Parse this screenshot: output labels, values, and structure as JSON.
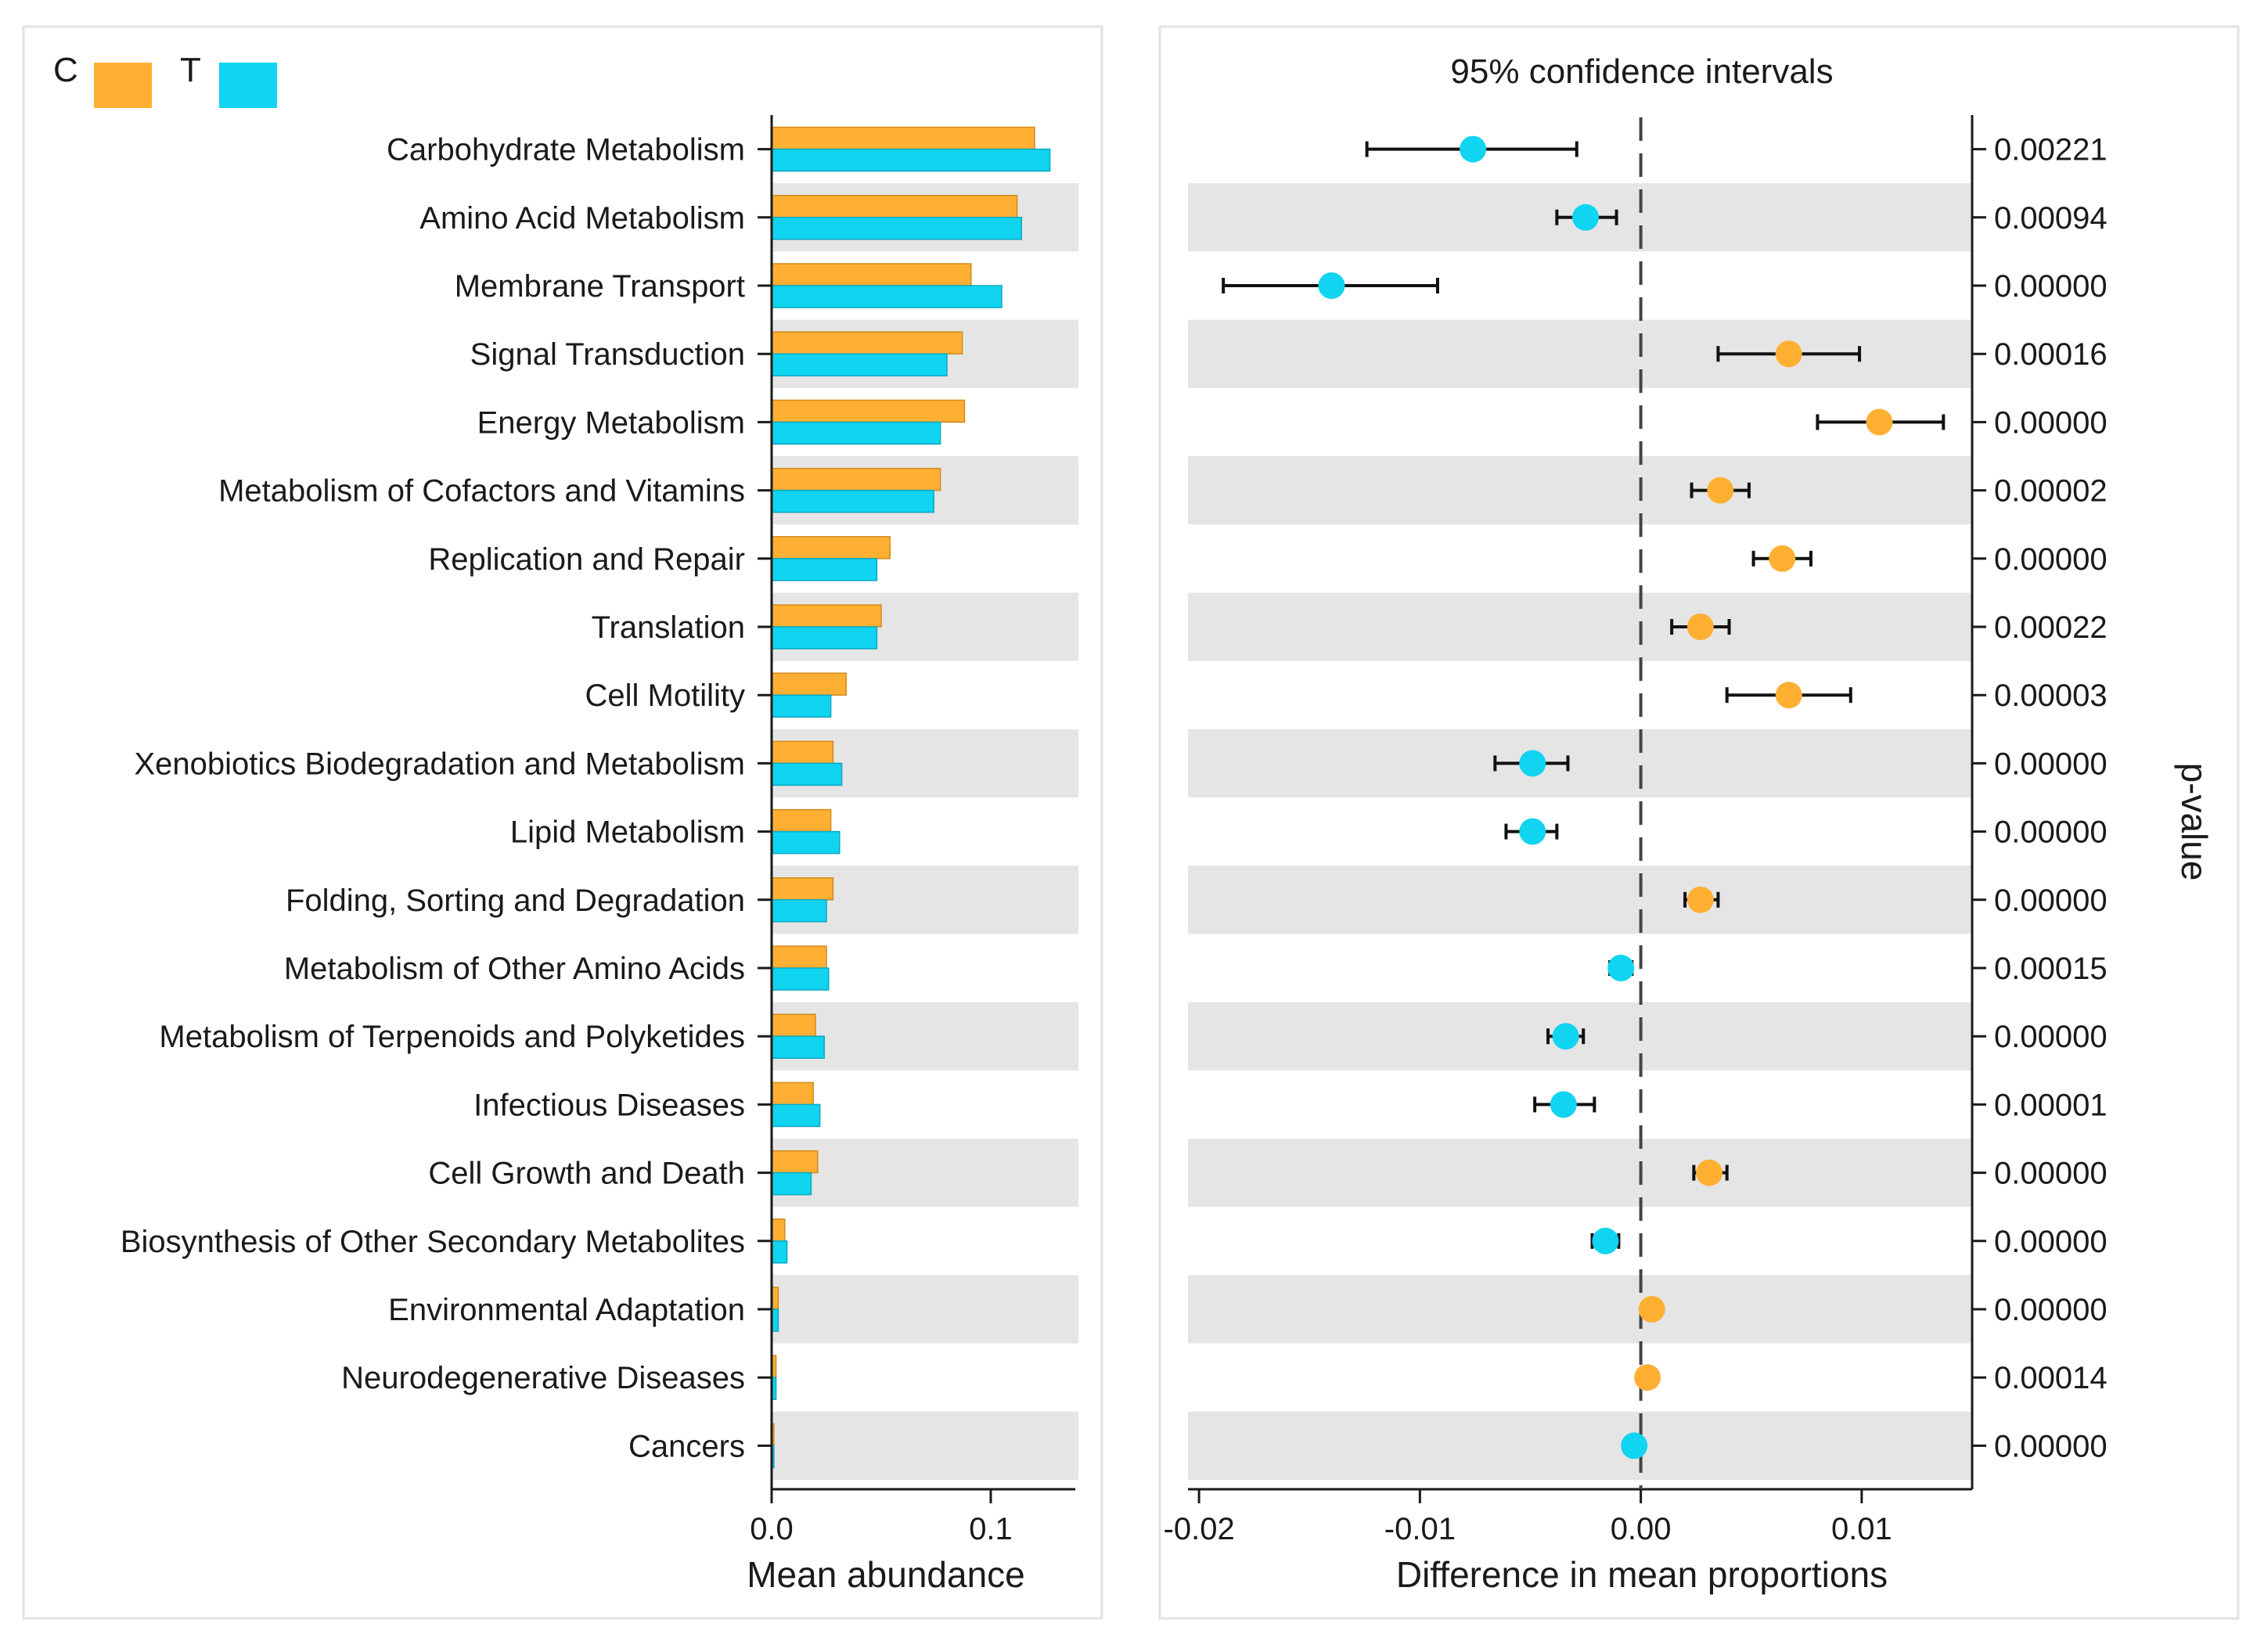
{
  "legend": {
    "c_label": "C",
    "t_label": "T"
  },
  "colors": {
    "c": "#FFB033",
    "t": "#10D4F0",
    "band": "#E5E5E5",
    "axis": "#1a1a1a"
  },
  "chart_data": [
    {
      "type": "bar",
      "orientation": "horizontal",
      "xlabel": "Mean abundance",
      "xlim": [
        0.0,
        0.14
      ],
      "xticks": [
        "0.0",
        "0.1"
      ],
      "categories": [
        "Carbohydrate Metabolism",
        "Amino Acid Metabolism",
        "Membrane Transport",
        "Signal Transduction",
        "Energy Metabolism",
        "Metabolism of Cofactors and Vitamins",
        "Replication and Repair",
        "Translation",
        "Cell Motility",
        "Xenobiotics Biodegradation and Metabolism",
        "Lipid Metabolism",
        "Folding, Sorting and Degradation",
        "Metabolism of Other Amino Acids",
        "Metabolism of Terpenoids and Polyketides",
        "Infectious Diseases",
        "Cell Growth and Death",
        "Biosynthesis of Other Secondary Metabolites",
        "Environmental Adaptation",
        "Neurodegenerative Diseases",
        "Cancers"
      ],
      "series": [
        {
          "name": "C",
          "values": [
            0.12,
            0.112,
            0.091,
            0.087,
            0.088,
            0.077,
            0.054,
            0.05,
            0.034,
            0.028,
            0.027,
            0.028,
            0.025,
            0.02,
            0.019,
            0.021,
            0.006,
            0.003,
            0.002,
            0.001
          ]
        },
        {
          "name": "T",
          "values": [
            0.127,
            0.114,
            0.105,
            0.08,
            0.077,
            0.074,
            0.048,
            0.048,
            0.027,
            0.032,
            0.031,
            0.025,
            0.026,
            0.024,
            0.022,
            0.018,
            0.007,
            0.003,
            0.002,
            0.001
          ]
        }
      ]
    },
    {
      "type": "scatter",
      "subtype": "error-bar",
      "title": "95% confidence intervals",
      "xlabel": "Difference in mean proportions",
      "ylabel_right": "p-value",
      "xlim": [
        -0.0205,
        0.015
      ],
      "xticks": [
        "-0.02",
        "-0.01",
        "0.00",
        "0.01"
      ],
      "points": [
        {
          "diff": -0.0076,
          "lo": -0.0124,
          "hi": -0.0029,
          "group": "T",
          "p": "0.00221"
        },
        {
          "diff": -0.0025,
          "lo": -0.0038,
          "hi": -0.0011,
          "group": "T",
          "p": "0.00094"
        },
        {
          "diff": -0.014,
          "lo": -0.0189,
          "hi": -0.0092,
          "group": "T",
          "p": "0.00000"
        },
        {
          "diff": 0.0067,
          "lo": 0.0035,
          "hi": 0.0099,
          "group": "C",
          "p": "0.00016"
        },
        {
          "diff": 0.0108,
          "lo": 0.008,
          "hi": 0.0137,
          "group": "C",
          "p": "0.00000"
        },
        {
          "diff": 0.0036,
          "lo": 0.0023,
          "hi": 0.0049,
          "group": "C",
          "p": "0.00002"
        },
        {
          "diff": 0.0064,
          "lo": 0.0051,
          "hi": 0.0077,
          "group": "C",
          "p": "0.00000"
        },
        {
          "diff": 0.0027,
          "lo": 0.0014,
          "hi": 0.004,
          "group": "C",
          "p": "0.00022"
        },
        {
          "diff": 0.0067,
          "lo": 0.0039,
          "hi": 0.0095,
          "group": "C",
          "p": "0.00003"
        },
        {
          "diff": -0.0049,
          "lo": -0.0066,
          "hi": -0.0033,
          "group": "T",
          "p": "0.00000"
        },
        {
          "diff": -0.0049,
          "lo": -0.0061,
          "hi": -0.0038,
          "group": "T",
          "p": "0.00000"
        },
        {
          "diff": 0.0027,
          "lo": 0.002,
          "hi": 0.0035,
          "group": "C",
          "p": "0.00000"
        },
        {
          "diff": -0.0009,
          "lo": -0.0014,
          "hi": -0.0004,
          "group": "T",
          "p": "0.00015"
        },
        {
          "diff": -0.0034,
          "lo": -0.0042,
          "hi": -0.0026,
          "group": "T",
          "p": "0.00000"
        },
        {
          "diff": -0.0035,
          "lo": -0.0048,
          "hi": -0.0021,
          "group": "T",
          "p": "0.00001"
        },
        {
          "diff": 0.0031,
          "lo": 0.0024,
          "hi": 0.0039,
          "group": "C",
          "p": "0.00000"
        },
        {
          "diff": -0.0016,
          "lo": -0.0022,
          "hi": -0.001,
          "group": "T",
          "p": "0.00000"
        },
        {
          "diff": 0.0005,
          "lo": 0.0004,
          "hi": 0.0006,
          "group": "C",
          "p": "0.00000"
        },
        {
          "diff": 0.0003,
          "lo": 0.0002,
          "hi": 0.0004,
          "group": "C",
          "p": "0.00014"
        },
        {
          "diff": -0.0003,
          "lo": -0.0004,
          "hi": -0.0002,
          "group": "T",
          "p": "0.00000"
        }
      ]
    }
  ]
}
